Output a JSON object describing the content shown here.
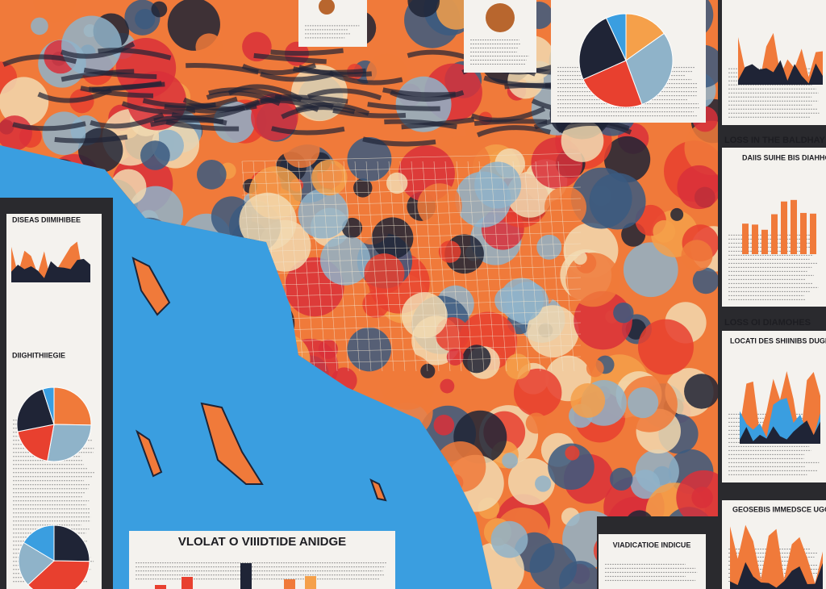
{
  "map": {
    "title": "VLOLAT O VIIIDTIDE ANIDGE",
    "subtitle": "VIADICATIOE INDICUE"
  },
  "panels": [
    {
      "title": "LOSS IN THE BALDHAY",
      "subtitle": "DAIIS SUIHE BIS DIAHHOS"
    },
    {
      "title": "LOSS OI DIAMOHES",
      "subtitle": "LOCATI DES SHIINIBS DUGIE"
    },
    {
      "title": "GEOSEBIS IMMEDSCE UGGE"
    },
    {
      "title": "DISEAS DIIMIHIBEE",
      "subtitle": "DIIGHITHIIEGIE"
    }
  ]
}
